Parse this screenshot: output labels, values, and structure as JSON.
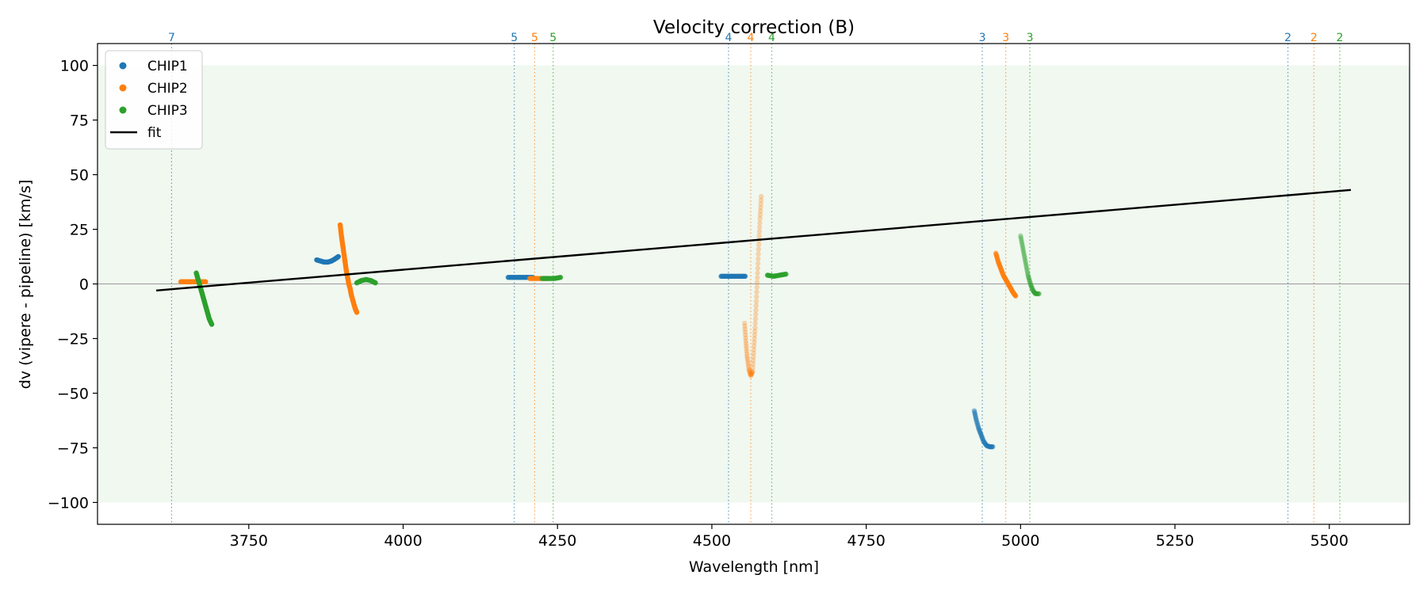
{
  "chart_data": {
    "type": "scatter",
    "title": "Velocity correction (B)",
    "xlabel": "Wavelength [nm]",
    "ylabel": "dv (vipere - pipeline) [km/s]",
    "xlim": [
      3505,
      5630
    ],
    "ylim": [
      -110,
      110
    ],
    "xticks": [
      3750,
      4000,
      4250,
      4500,
      4750,
      5000,
      5250,
      5500
    ],
    "yticks": [
      -100,
      -75,
      -50,
      -25,
      0,
      25,
      50,
      75,
      100
    ],
    "grid": false,
    "legend_position": "top-left",
    "shaded_band": {
      "ymin": -100,
      "ymax": 100,
      "color": "#2ca02c"
    },
    "zero_line": {
      "y": 0,
      "color": "#999999"
    },
    "colors": {
      "CHIP1": "#1f77b4",
      "CHIP2": "#ff7f0e",
      "CHIP3": "#2ca02c",
      "fit": "#000000"
    },
    "series": [
      {
        "name": "CHIP1",
        "segments": [
          {
            "opacity": 1.0,
            "points": [
              [
                3860,
                11
              ],
              [
                3866,
                10.5
              ],
              [
                3872,
                10
              ],
              [
                3878,
                10
              ],
              [
                3884,
                10.5
              ],
              [
                3890,
                11.5
              ],
              [
                3895,
                12.5
              ]
            ]
          },
          {
            "opacity": 0.8,
            "points": [
              [
                4170,
                3
              ],
              [
                4180,
                3
              ],
              [
                4190,
                3
              ],
              [
                4200,
                3
              ],
              [
                4210,
                3
              ]
            ]
          },
          {
            "opacity": 0.8,
            "points": [
              [
                4515,
                3.5
              ],
              [
                4525,
                3.5
              ],
              [
                4535,
                3.5
              ],
              [
                4545,
                3.5
              ],
              [
                4554,
                3.5
              ]
            ]
          },
          {
            "opacity": 0.45,
            "points": [
              [
                4925,
                -58
              ],
              [
                4928,
                -62
              ],
              [
                4932,
                -66
              ],
              [
                4936,
                -69
              ],
              [
                4940,
                -72
              ],
              [
                4945,
                -74
              ],
              [
                4950,
                -74.5
              ],
              [
                4955,
                -74.5
              ]
            ]
          }
        ]
      },
      {
        "name": "CHIP2",
        "segments": [
          {
            "opacity": 1.0,
            "points": [
              [
                3640,
                1
              ],
              [
                3650,
                1
              ],
              [
                3660,
                1
              ],
              [
                3670,
                1
              ],
              [
                3680,
                1
              ]
            ]
          },
          {
            "opacity": 1.0,
            "points": [
              [
                3898,
                27
              ],
              [
                3900,
                22
              ],
              [
                3902,
                18
              ],
              [
                3904,
                14
              ],
              [
                3906,
                10
              ],
              [
                3908,
                6
              ],
              [
                3910,
                3
              ],
              [
                3912,
                0
              ],
              [
                3914,
                -2
              ],
              [
                3916,
                -5
              ],
              [
                3919,
                -8
              ],
              [
                3922,
                -11
              ],
              [
                3925,
                -13
              ]
            ]
          },
          {
            "opacity": 0.8,
            "points": [
              [
                4205,
                2.5
              ],
              [
                4215,
                2.5
              ],
              [
                4225,
                2.5
              ],
              [
                4235,
                2.5
              ]
            ]
          },
          {
            "opacity": 0.3,
            "points": [
              [
                4553,
                -18
              ],
              [
                4555,
                -26
              ],
              [
                4557,
                -33
              ],
              [
                4560,
                -39
              ],
              [
                4563,
                -42
              ],
              [
                4566,
                -40
              ],
              [
                4568,
                -30
              ],
              [
                4570,
                -20
              ],
              [
                4572,
                -8
              ],
              [
                4574,
                5
              ],
              [
                4576,
                18
              ],
              [
                4578,
                30
              ],
              [
                4580,
                40
              ]
            ]
          },
          {
            "opacity": 0.7,
            "points": [
              [
                4960,
                14
              ],
              [
                4964,
                10
              ],
              [
                4968,
                7
              ],
              [
                4972,
                4
              ],
              [
                4976,
                2
              ],
              [
                4980,
                0
              ],
              [
                4984,
                -2
              ],
              [
                4988,
                -4
              ],
              [
                4992,
                -5.5
              ]
            ]
          }
        ]
      },
      {
        "name": "CHIP3",
        "segments": [
          {
            "opacity": 1.0,
            "points": [
              [
                3665,
                5
              ],
              [
                3668,
                2
              ],
              [
                3671,
                -1
              ],
              [
                3674,
                -4
              ],
              [
                3677,
                -7
              ],
              [
                3680,
                -10
              ],
              [
                3683,
                -13
              ],
              [
                3686,
                -16
              ],
              [
                3690,
                -18.5
              ]
            ]
          },
          {
            "opacity": 1.0,
            "points": [
              [
                3925,
                0.5
              ],
              [
                3932,
                1.5
              ],
              [
                3940,
                2
              ],
              [
                3948,
                1.5
              ],
              [
                3955,
                0.5
              ]
            ]
          },
          {
            "opacity": 0.8,
            "points": [
              [
                4225,
                2.5
              ],
              [
                4235,
                2.5
              ],
              [
                4245,
                2.5
              ],
              [
                4255,
                3
              ]
            ]
          },
          {
            "opacity": 0.8,
            "points": [
              [
                4590,
                4
              ],
              [
                4600,
                3.5
              ],
              [
                4610,
                4
              ],
              [
                4620,
                4.5
              ]
            ]
          },
          {
            "opacity": 0.4,
            "points": [
              [
                5000,
                22
              ],
              [
                5004,
                16
              ],
              [
                5008,
                10
              ],
              [
                5012,
                4
              ],
              [
                5016,
                0
              ],
              [
                5020,
                -3
              ],
              [
                5024,
                -4.5
              ],
              [
                5030,
                -4.5
              ]
            ]
          }
        ]
      }
    ],
    "fit_line": {
      "name": "fit",
      "x": [
        3600,
        5535
      ],
      "y": [
        -3,
        43
      ]
    },
    "order_markers": [
      {
        "x": 3625,
        "label": "7",
        "chip": "CHIP1"
      },
      {
        "x": 4180,
        "label": "5",
        "chip": "CHIP1"
      },
      {
        "x": 4213,
        "label": "5",
        "chip": "CHIP2"
      },
      {
        "x": 4243,
        "label": "5",
        "chip": "CHIP3"
      },
      {
        "x": 4527,
        "label": "4",
        "chip": "CHIP1"
      },
      {
        "x": 4563,
        "label": "4",
        "chip": "CHIP2"
      },
      {
        "x": 4597,
        "label": "4",
        "chip": "CHIP3"
      },
      {
        "x": 4938,
        "label": "3",
        "chip": "CHIP1"
      },
      {
        "x": 4976,
        "label": "3",
        "chip": "CHIP2"
      },
      {
        "x": 5015,
        "label": "3",
        "chip": "CHIP3"
      },
      {
        "x": 5433,
        "label": "2",
        "chip": "CHIP1"
      },
      {
        "x": 5475,
        "label": "2",
        "chip": "CHIP2"
      },
      {
        "x": 5517,
        "label": "2",
        "chip": "CHIP3"
      }
    ],
    "legend": [
      {
        "label": "CHIP1",
        "kind": "marker",
        "chip": "CHIP1"
      },
      {
        "label": "CHIP2",
        "kind": "marker",
        "chip": "CHIP2"
      },
      {
        "label": "CHIP3",
        "kind": "marker",
        "chip": "CHIP3"
      },
      {
        "label": "fit",
        "kind": "line",
        "chip": "fit"
      }
    ]
  }
}
